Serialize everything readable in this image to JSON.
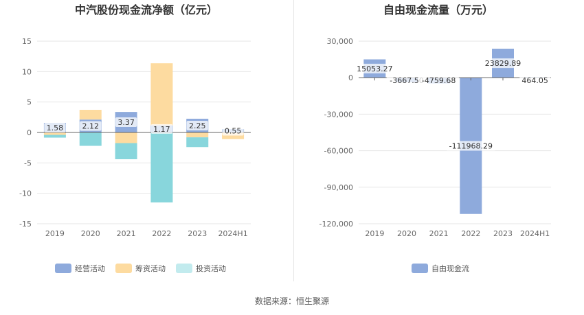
{
  "source_label": "数据来源：恒生聚源",
  "colors": {
    "operating": "#8eaadc",
    "financing": "#fddba0",
    "investing": "#88d6dc",
    "free_cash_flow": "#8eaadc",
    "legend_investing": "#c2ebee"
  },
  "chart_data": [
    {
      "type": "bar",
      "stacked": true,
      "title": "中汽股份现金流净额（亿元）",
      "categories": [
        "2019",
        "2020",
        "2021",
        "2022",
        "2023",
        "2024H1"
      ],
      "ylim": [
        -15,
        15
      ],
      "yticks": [
        15,
        10,
        5,
        0,
        -5,
        -10,
        -15
      ],
      "grid": true,
      "legend_position": "bottom",
      "series": [
        {
          "name": "经营活动",
          "key": "operating",
          "values": [
            1.58,
            2.12,
            3.37,
            1.17,
            2.25,
            0.55
          ],
          "labels": [
            "1.58",
            "2.12",
            "3.37",
            "1.17",
            "2.25",
            "0.55"
          ]
        },
        {
          "name": "筹资活动",
          "key": "financing",
          "values": [
            -0.4,
            1.6,
            -1.75,
            10.2,
            -0.8,
            -1.1
          ]
        },
        {
          "name": "投资活动",
          "key": "investing",
          "values": [
            -0.45,
            -2.2,
            -2.65,
            -11.5,
            -1.6,
            0
          ]
        }
      ]
    },
    {
      "type": "bar",
      "title": "自由现金流量（万元）",
      "categories": [
        "2019",
        "2020",
        "2021",
        "2022",
        "2023",
        "2024H1"
      ],
      "ylim": [
        -120000,
        30000
      ],
      "yticks": [
        30000,
        0,
        -30000,
        -60000,
        -90000,
        -120000
      ],
      "ytick_labels": [
        "30,000",
        "0",
        "-30,000",
        "-60,000",
        "-90,000",
        "-120,000"
      ],
      "grid": true,
      "legend_position": "bottom",
      "series": [
        {
          "name": "自由现金流",
          "key": "free_cash_flow",
          "values": [
            15053.27,
            -3667.5,
            -4759.68,
            -111968.29,
            23829.89,
            464.05
          ],
          "labels": [
            "15053.27",
            "-3667.50",
            "-4759.68",
            "-111968.29",
            "23829.89",
            "464.05"
          ]
        }
      ]
    }
  ]
}
